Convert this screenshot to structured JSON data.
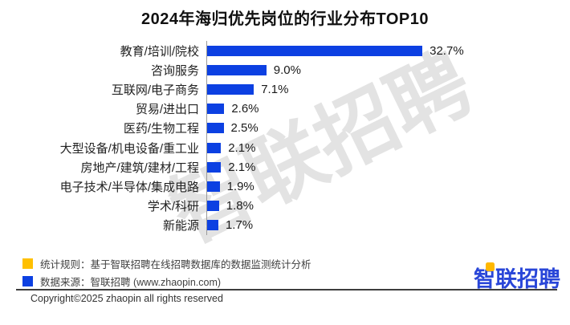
{
  "title": "2024年海归优先岗位的行业分布TOP10",
  "watermark": "智联招聘",
  "chart_data": {
    "type": "bar",
    "orientation": "horizontal",
    "title": "2024年海归优先岗位的行业分布TOP10",
    "categories": [
      "教育/培训/院校",
      "咨询服务",
      "互联网/电子商务",
      "贸易/进出口",
      "医药/生物工程",
      "大型设备/机电设备/重工业",
      "房地产/建筑/建材/工程",
      "电子技术/半导体/集成电路",
      "学术/科研",
      "新能源"
    ],
    "values": [
      32.7,
      9.0,
      7.1,
      2.6,
      2.5,
      2.1,
      2.1,
      1.9,
      1.8,
      1.7
    ],
    "value_labels": [
      "32.7%",
      "9.0%",
      "7.1%",
      "2.6%",
      "2.5%",
      "2.1%",
      "2.1%",
      "1.9%",
      "1.8%",
      "1.7%"
    ],
    "unit": "%",
    "xlabel": "",
    "ylabel": "",
    "xlim": [
      0,
      35
    ],
    "grid": false,
    "legend_position": "none",
    "bar_color": "#0c40e2",
    "axis_color": "#9a9a9a"
  },
  "footer": {
    "legend": [
      {
        "swatch_color": "#ffc000",
        "text": "统计规则：基于智联招聘在线招聘数据库的数据监测统计分析"
      },
      {
        "swatch_color": "#0c40e2",
        "text": "数据来源：智联招聘 (www.zhaopin.com)"
      }
    ],
    "copyright": "Copyright©2025 zhaopin all rights reserved",
    "logo": {
      "text": "智联招聘",
      "color": "#2946d8",
      "accent_color": "#ffb800"
    }
  }
}
